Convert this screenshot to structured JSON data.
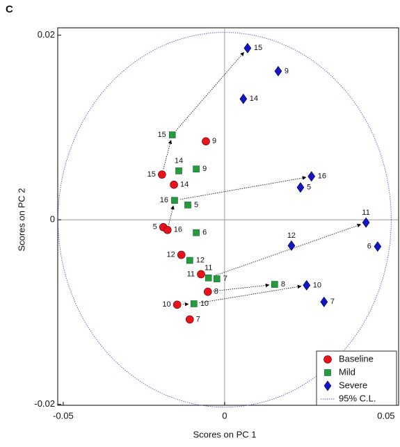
{
  "chart_data": {
    "type": "scatter",
    "panel_label": "C",
    "x_label": "Scores on PC 1",
    "y_label": "Scores on PC 2",
    "xlim": [
      -0.0517,
      0.0539
    ],
    "ylim": [
      -0.0201,
      0.0208
    ],
    "xticks": [
      -0.05,
      0,
      0.05
    ],
    "yticks": [
      -0.02,
      0,
      0.02
    ],
    "legend": "lower right",
    "series": [
      {
        "name": "Baseline",
        "color": "#e8141b",
        "marker": "circle",
        "labels": [
          "9",
          "15",
          "14",
          "5",
          "16",
          "12",
          "11",
          "8",
          "10",
          "7"
        ],
        "x": [
          -0.0058,
          -0.0194,
          -0.0157,
          -0.019,
          -0.0177,
          -0.0134,
          -0.0073,
          -0.0052,
          -0.0147,
          -0.0108
        ],
        "values": [
          0.0085,
          0.0049,
          0.0038,
          -0.0008,
          -0.0011,
          -0.0038,
          -0.0059,
          -0.0078,
          -0.0092,
          -0.0108
        ]
      },
      {
        "name": "Mild",
        "color": "#279a3b",
        "marker": "square",
        "labels": [
          "15",
          "14",
          "9",
          "16",
          "5",
          "6",
          "12",
          "11",
          "7",
          "8",
          "10"
        ],
        "x": [
          -0.0162,
          -0.0142,
          -0.0088,
          -0.0155,
          -0.0114,
          -0.0088,
          -0.0108,
          -0.005,
          -0.0024,
          0.0155,
          -0.0095
        ],
        "values": [
          0.0092,
          0.0053,
          0.0055,
          0.0021,
          0.0016,
          -0.0014,
          -0.0044,
          -0.0063,
          -0.0064,
          -0.007,
          -0.0091
        ]
      },
      {
        "name": "Severe",
        "color": "#1414c8",
        "marker": "diamond",
        "labels": [
          "15",
          "9",
          "14",
          "16",
          "5",
          "11",
          "12",
          "6",
          "10",
          "7"
        ],
        "x": [
          0.0071,
          0.0166,
          0.0058,
          0.0269,
          0.0235,
          0.0438,
          0.0207,
          0.0474,
          0.0254,
          0.0308
        ],
        "values": [
          0.0186,
          0.0161,
          0.0131,
          0.0047,
          0.0035,
          -0.0003,
          -0.0028,
          -0.0029,
          -0.0071,
          -0.0089
        ]
      }
    ],
    "ellipse": {
      "name": "95% C.L.",
      "color": "#5a5ad0",
      "rx": 0.0516,
      "ry": 0.0203
    }
  }
}
